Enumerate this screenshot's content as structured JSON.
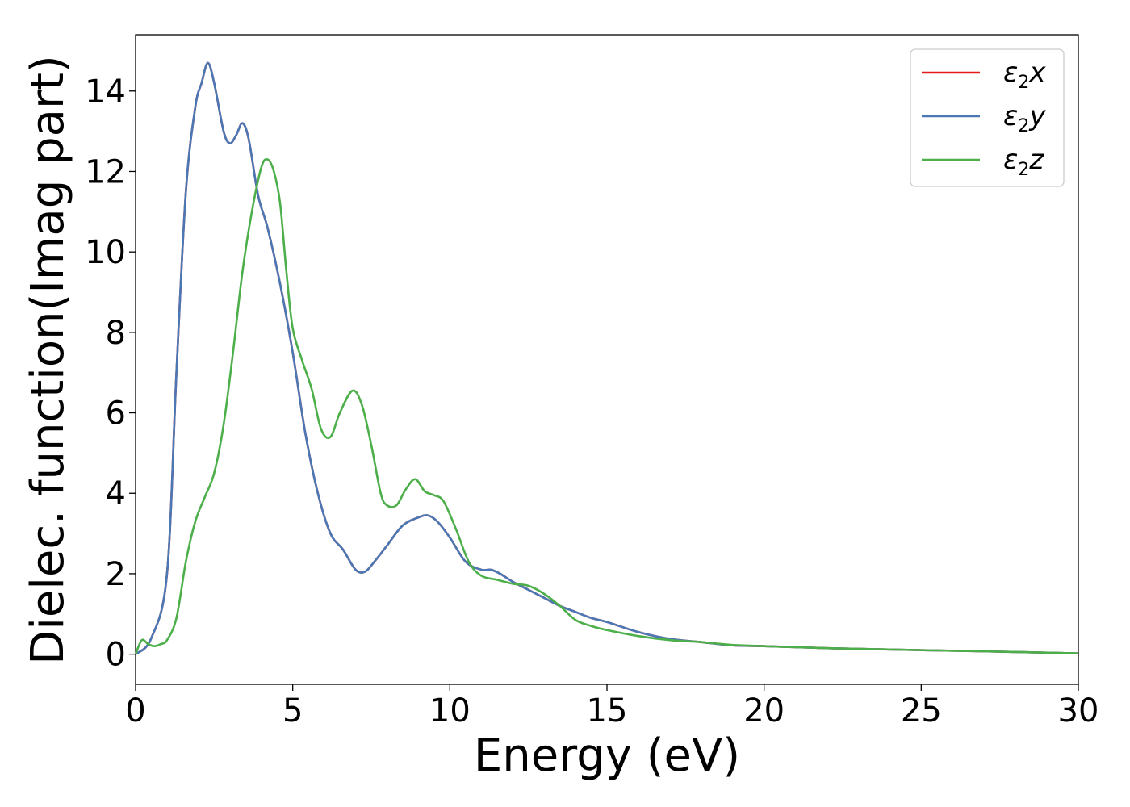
{
  "chart_data": {
    "type": "line",
    "title": "",
    "xlabel": "Energy (eV)",
    "ylabel": "Dielec. function(Imag part)",
    "xlim": [
      0,
      30
    ],
    "ylim": [
      -0.75,
      15.4
    ],
    "xticks": [
      0,
      5,
      10,
      15,
      20,
      25,
      30
    ],
    "yticks": [
      0,
      2,
      4,
      6,
      8,
      10,
      12,
      14
    ],
    "grid": false,
    "legend_position": "top-right",
    "series": [
      {
        "name": "ε2x",
        "legend_base": "ε",
        "legend_sub": "2",
        "legend_suffix": "x",
        "color": "#e41a1c",
        "x": [
          0,
          0.5,
          1.0,
          1.3,
          1.6,
          1.9,
          2.1,
          2.3,
          2.5,
          2.8,
          3.0,
          3.2,
          3.4,
          3.6,
          3.9,
          4.2,
          4.6,
          5.0,
          5.4,
          5.8,
          6.2,
          6.6,
          7.0,
          7.3,
          7.6,
          8.0,
          8.5,
          9.0,
          9.3,
          9.6,
          10.0,
          10.5,
          11.0,
          11.3,
          11.6,
          12.0,
          12.5,
          13.0,
          13.5,
          14.0,
          14.5,
          15.0,
          16.0,
          17.0,
          18.0,
          19.0,
          20.0,
          22.0,
          25.0,
          27.0,
          30.0
        ],
        "y": [
          0,
          0.4,
          2.0,
          7.0,
          11.5,
          13.6,
          14.2,
          14.7,
          14.2,
          13.0,
          12.7,
          12.9,
          13.2,
          12.8,
          11.4,
          10.6,
          9.2,
          7.5,
          5.5,
          4.0,
          3.0,
          2.6,
          2.1,
          2.05,
          2.3,
          2.7,
          3.2,
          3.4,
          3.45,
          3.3,
          2.9,
          2.3,
          2.1,
          2.1,
          2.0,
          1.8,
          1.6,
          1.4,
          1.2,
          1.05,
          0.9,
          0.8,
          0.55,
          0.38,
          0.3,
          0.22,
          0.2,
          0.15,
          0.1,
          0.07,
          0.02
        ]
      },
      {
        "name": "ε2y",
        "legend_base": "ε",
        "legend_sub": "2",
        "legend_suffix": "y",
        "color": "#4a78b5",
        "x": [
          0,
          0.5,
          1.0,
          1.3,
          1.6,
          1.9,
          2.1,
          2.3,
          2.5,
          2.8,
          3.0,
          3.2,
          3.4,
          3.6,
          3.9,
          4.2,
          4.6,
          5.0,
          5.4,
          5.8,
          6.2,
          6.6,
          7.0,
          7.3,
          7.6,
          8.0,
          8.5,
          9.0,
          9.3,
          9.6,
          10.0,
          10.5,
          11.0,
          11.3,
          11.6,
          12.0,
          12.5,
          13.0,
          13.5,
          14.0,
          14.5,
          15.0,
          16.0,
          17.0,
          18.0,
          19.0,
          20.0,
          22.0,
          25.0,
          27.0,
          30.0
        ],
        "y": [
          0,
          0.4,
          2.0,
          7.0,
          11.5,
          13.6,
          14.2,
          14.7,
          14.2,
          13.0,
          12.7,
          12.9,
          13.2,
          12.8,
          11.4,
          10.6,
          9.2,
          7.5,
          5.5,
          4.0,
          3.0,
          2.6,
          2.1,
          2.05,
          2.3,
          2.7,
          3.2,
          3.4,
          3.45,
          3.3,
          2.9,
          2.3,
          2.1,
          2.1,
          2.0,
          1.8,
          1.6,
          1.4,
          1.2,
          1.05,
          0.9,
          0.8,
          0.55,
          0.38,
          0.3,
          0.22,
          0.2,
          0.15,
          0.1,
          0.07,
          0.02
        ]
      },
      {
        "name": "ε2z",
        "legend_base": "ε",
        "legend_sub": "2",
        "legend_suffix": "z",
        "color": "#4daf4a",
        "x": [
          0,
          0.2,
          0.4,
          0.6,
          0.8,
          1.0,
          1.3,
          1.6,
          1.9,
          2.2,
          2.5,
          2.8,
          3.1,
          3.4,
          3.7,
          4.0,
          4.2,
          4.4,
          4.6,
          4.8,
          5.0,
          5.3,
          5.6,
          5.9,
          6.2,
          6.5,
          6.9,
          7.2,
          7.5,
          7.8,
          8.0,
          8.3,
          8.6,
          8.9,
          9.2,
          9.5,
          9.8,
          10.2,
          10.6,
          11.0,
          11.5,
          12.0,
          12.5,
          13.0,
          13.5,
          14.0,
          14.5,
          15.0,
          16.0,
          17.0,
          18.0,
          19.0,
          20.0,
          22.0,
          25.0,
          27.0,
          30.0
        ],
        "y": [
          0,
          0.35,
          0.25,
          0.2,
          0.25,
          0.35,
          0.9,
          2.3,
          3.3,
          3.9,
          4.5,
          5.7,
          7.5,
          9.5,
          11.0,
          12.1,
          12.3,
          12.0,
          11.2,
          9.5,
          8.1,
          7.3,
          6.6,
          5.6,
          5.4,
          6.0,
          6.55,
          6.2,
          5.2,
          4.0,
          3.7,
          3.7,
          4.1,
          4.35,
          4.05,
          3.95,
          3.8,
          3.1,
          2.3,
          1.95,
          1.85,
          1.75,
          1.7,
          1.5,
          1.2,
          0.85,
          0.7,
          0.6,
          0.45,
          0.35,
          0.3,
          0.23,
          0.2,
          0.15,
          0.1,
          0.07,
          0.02
        ]
      }
    ]
  }
}
